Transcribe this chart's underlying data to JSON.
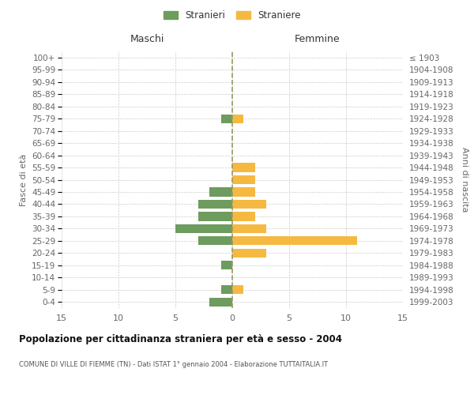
{
  "age_groups": [
    "0-4",
    "5-9",
    "10-14",
    "15-19",
    "20-24",
    "25-29",
    "30-34",
    "35-39",
    "40-44",
    "45-49",
    "50-54",
    "55-59",
    "60-64",
    "65-69",
    "70-74",
    "75-79",
    "80-84",
    "85-89",
    "90-94",
    "95-99",
    "100+"
  ],
  "birth_years": [
    "1999-2003",
    "1994-1998",
    "1989-1993",
    "1984-1988",
    "1979-1983",
    "1974-1978",
    "1969-1973",
    "1964-1968",
    "1959-1963",
    "1954-1958",
    "1949-1953",
    "1944-1948",
    "1939-1943",
    "1934-1938",
    "1929-1933",
    "1924-1928",
    "1919-1923",
    "1914-1918",
    "1909-1913",
    "1904-1908",
    "≤ 1903"
  ],
  "males": [
    2,
    1,
    0,
    1,
    0,
    3,
    5,
    3,
    3,
    2,
    0,
    0,
    0,
    0,
    0,
    1,
    0,
    0,
    0,
    0,
    0
  ],
  "females": [
    0,
    1,
    0,
    0,
    3,
    11,
    3,
    2,
    3,
    2,
    2,
    2,
    0,
    0,
    0,
    1,
    0,
    0,
    0,
    0,
    0
  ],
  "male_color": "#6e9b5e",
  "female_color": "#f5b942",
  "title": "Popolazione per cittadinanza straniera per età e sesso - 2004",
  "subtitle": "COMUNE DI VILLE DI FIEMME (TN) - Dati ISTAT 1° gennaio 2004 - Elaborazione TUTTAITALIA.IT",
  "xlabel_left": "Maschi",
  "xlabel_right": "Femmine",
  "ylabel_left": "Fasce di età",
  "ylabel_right": "Anni di nascita",
  "legend_male": "Stranieri",
  "legend_female": "Straniere",
  "xlim": 15,
  "background_color": "#ffffff",
  "grid_color": "#cccccc",
  "text_color": "#666666"
}
